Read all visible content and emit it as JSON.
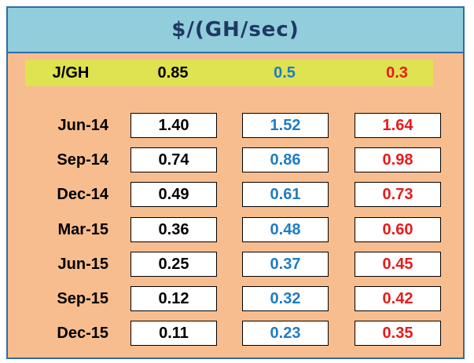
{
  "title": "$/(GH/sec)",
  "header": {
    "label": "J/GH",
    "values": [
      "0.85",
      "0.5",
      "0.3"
    ]
  },
  "colors": {
    "background": "#f8bd8e",
    "title_bar": "#92cddc",
    "header_band": "#dfe251",
    "border": "#2f6ba8",
    "col1": "#000000",
    "col2": "#1f7cc4",
    "col3": "#e81a1a"
  },
  "rows": [
    {
      "label": "Jun-14",
      "values": [
        "1.40",
        "1.52",
        "1.64"
      ]
    },
    {
      "label": "Sep-14",
      "values": [
        "0.74",
        "0.86",
        "0.98"
      ]
    },
    {
      "label": "Dec-14",
      "values": [
        "0.49",
        "0.61",
        "0.73"
      ]
    },
    {
      "label": "Mar-15",
      "values": [
        "0.36",
        "0.48",
        "0.60"
      ]
    },
    {
      "label": "Jun-15",
      "values": [
        "0.25",
        "0.37",
        "0.45"
      ]
    },
    {
      "label": "Sep-15",
      "values": [
        "0.12",
        "0.32",
        "0.42"
      ]
    },
    {
      "label": "Dec-15",
      "values": [
        "0.11",
        "0.23",
        "0.35"
      ]
    }
  ]
}
